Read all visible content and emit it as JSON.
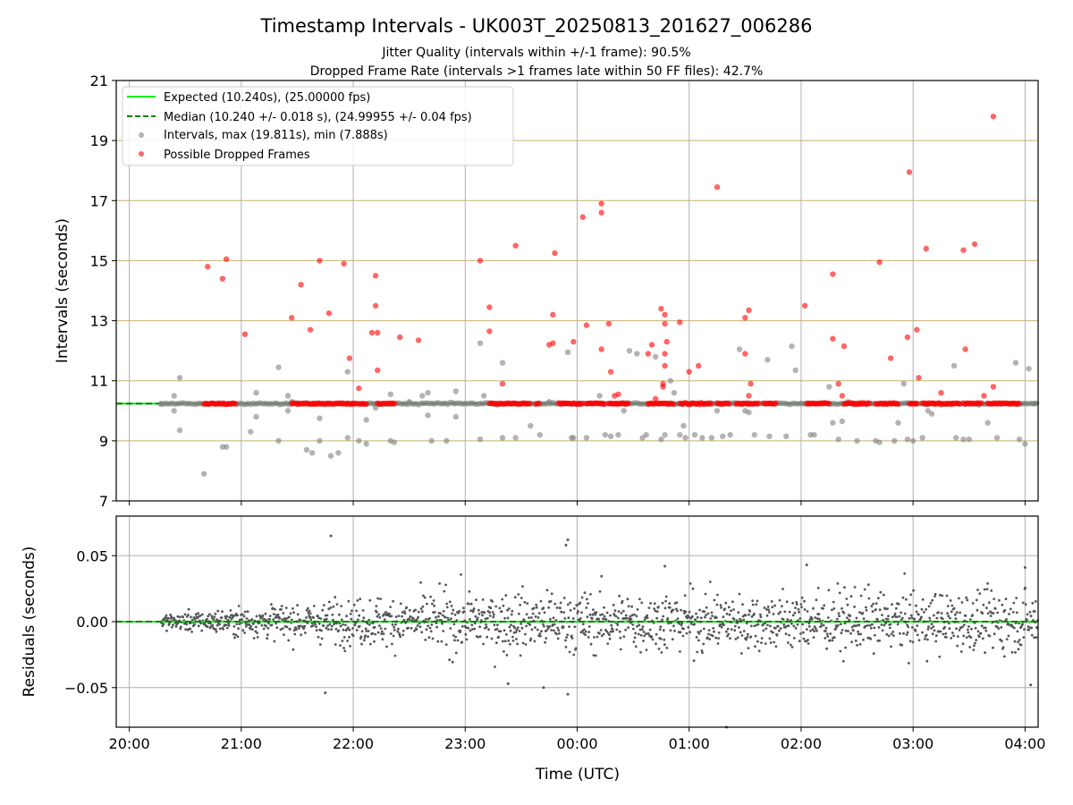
{
  "title": "Timestamp Intervals - UK003T_20250813_201627_006286",
  "subtitle_1": "Jitter Quality (intervals within +/-1 frame): 90.5%",
  "subtitle_2": "Dropped Frame Rate (intervals >1 frames late within 50 FF files): 42.7%",
  "colors": {
    "expected": "#00ee00",
    "median": "#007f00",
    "intervals": "#808080",
    "dropped": "#ff0000",
    "hgrid": "#c8b070",
    "vgrid": "#b0b0b0",
    "residuals": "#555555"
  },
  "chart_data": [
    {
      "type": "scatter",
      "ylabel": "Intervals (seconds)",
      "ylim": [
        7,
        21
      ],
      "yticks": [
        "7",
        "9",
        "11",
        "13",
        "15",
        "17",
        "19",
        "21"
      ],
      "x_range_utc": [
        "19:53",
        "04:07"
      ],
      "xticks": [
        "20:00",
        "21:00",
        "22:00",
        "23:00",
        "00:00",
        "01:00",
        "02:00",
        "03:00",
        "04:00"
      ],
      "grid": "horizontal lines at odd seconds, vertical lines at hours",
      "legend_position": "top-left",
      "legend": {
        "expected": "Expected (10.240s), (25.00000 fps)",
        "median": "Median (10.240 +/- 0.018 s), (24.99955 +/- 0.04 fps)",
        "intervals": "Intervals, max (19.811s), min (7.888s)",
        "dropped": "Possible Dropped Frames"
      },
      "expected_interval": 10.24,
      "median_interval": 10.24,
      "series": [
        {
          "name": "Intervals, max (19.811s), min (7.888s)",
          "points": [
            [
              "20:17",
              10.24
            ],
            [
              "20:24",
              10.5
            ],
            [
              "20:24",
              10.0
            ],
            [
              "20:27",
              11.1
            ],
            [
              "20:27",
              9.35
            ],
            [
              "20:40",
              7.9
            ],
            [
              "20:50",
              8.8
            ],
            [
              "20:52",
              8.8
            ],
            [
              "21:05",
              9.3
            ],
            [
              "21:08",
              9.8
            ],
            [
              "21:08",
              10.6
            ],
            [
              "21:20",
              11.45
            ],
            [
              "21:20",
              9.0
            ],
            [
              "21:25",
              10.0
            ],
            [
              "21:25",
              10.5
            ],
            [
              "21:27",
              10.3
            ],
            [
              "21:35",
              8.7
            ],
            [
              "21:38",
              8.6
            ],
            [
              "21:42",
              9.0
            ],
            [
              "21:42",
              9.75
            ],
            [
              "21:48",
              8.5
            ],
            [
              "21:52",
              8.6
            ],
            [
              "21:57",
              9.1
            ],
            [
              "21:57",
              11.3
            ],
            [
              "22:03",
              9.0
            ],
            [
              "22:07",
              8.9
            ],
            [
              "22:07",
              9.7
            ],
            [
              "22:12",
              10.1
            ],
            [
              "22:20",
              9.0
            ],
            [
              "22:20",
              10.55
            ],
            [
              "22:22",
              8.95
            ],
            [
              "22:30",
              10.3
            ],
            [
              "22:37",
              10.5
            ],
            [
              "22:40",
              9.85
            ],
            [
              "22:40",
              10.6
            ],
            [
              "22:42",
              9.0
            ],
            [
              "22:50",
              9.0
            ],
            [
              "22:55",
              10.65
            ],
            [
              "22:55",
              9.8
            ],
            [
              "23:08",
              12.25
            ],
            [
              "23:08",
              9.05
            ],
            [
              "23:10",
              10.5
            ],
            [
              "23:20",
              9.1
            ],
            [
              "23:20",
              11.6
            ],
            [
              "23:27",
              9.1
            ],
            [
              "23:35",
              9.5
            ],
            [
              "23:40",
              9.2
            ],
            [
              "23:45",
              10.3
            ],
            [
              "23:55",
              11.95
            ],
            [
              "23:57",
              9.1
            ],
            [
              "23:58",
              9.1
            ],
            [
              "00:05",
              9.1
            ],
            [
              "00:12",
              10.5
            ],
            [
              "00:15",
              9.2
            ],
            [
              "00:18",
              9.15
            ],
            [
              "00:22",
              9.2
            ],
            [
              "00:25",
              10.0
            ],
            [
              "00:28",
              12.0
            ],
            [
              "00:32",
              11.9
            ],
            [
              "00:35",
              9.1
            ],
            [
              "00:37",
              9.2
            ],
            [
              "00:42",
              11.8
            ],
            [
              "00:45",
              9.05
            ],
            [
              "00:47",
              9.2
            ],
            [
              "00:50",
              11.0
            ],
            [
              "00:52",
              10.6
            ],
            [
              "00:55",
              9.2
            ],
            [
              "00:57",
              9.5
            ],
            [
              "00:58",
              9.1
            ],
            [
              "01:03",
              9.2
            ],
            [
              "01:07",
              9.1
            ],
            [
              "01:12",
              9.1
            ],
            [
              "01:15",
              10.0
            ],
            [
              "01:18",
              9.15
            ],
            [
              "01:22",
              9.2
            ],
            [
              "01:27",
              12.05
            ],
            [
              "01:30",
              10.0
            ],
            [
              "01:32",
              9.95
            ],
            [
              "01:35",
              9.2
            ],
            [
              "01:42",
              11.7
            ],
            [
              "01:43",
              9.15
            ],
            [
              "01:52",
              9.15
            ],
            [
              "01:55",
              12.15
            ],
            [
              "01:57",
              11.35
            ],
            [
              "02:05",
              9.2
            ],
            [
              "02:07",
              9.2
            ],
            [
              "02:15",
              10.8
            ],
            [
              "02:17",
              9.6
            ],
            [
              "02:20",
              9.05
            ],
            [
              "02:22",
              9.65
            ],
            [
              "02:25",
              10.3
            ],
            [
              "02:30",
              9.0
            ],
            [
              "02:40",
              9.0
            ],
            [
              "02:42",
              8.95
            ],
            [
              "02:50",
              9.0
            ],
            [
              "02:52",
              9.6
            ],
            [
              "02:55",
              10.9
            ],
            [
              "02:57",
              9.05
            ],
            [
              "03:00",
              9.0
            ],
            [
              "03:05",
              9.1
            ],
            [
              "03:08",
              10.0
            ],
            [
              "03:10",
              9.9
            ],
            [
              "03:15",
              10.2
            ],
            [
              "03:22",
              11.5
            ],
            [
              "03:23",
              9.1
            ],
            [
              "03:27",
              9.05
            ],
            [
              "03:30",
              9.05
            ],
            [
              "03:35",
              10.2
            ],
            [
              "03:40",
              9.6
            ],
            [
              "03:45",
              9.1
            ],
            [
              "03:55",
              11.6
            ],
            [
              "03:57",
              9.05
            ],
            [
              "04:00",
              8.9
            ],
            [
              "04:02",
              11.4
            ],
            [
              "04:05",
              10.24
            ]
          ]
        },
        {
          "name": "Possible Dropped Frames",
          "points": [
            [
              "20:42",
              14.8
            ],
            [
              "20:50",
              14.4
            ],
            [
              "20:52",
              15.05
            ],
            [
              "21:02",
              12.55
            ],
            [
              "21:27",
              13.1
            ],
            [
              "21:32",
              14.2
            ],
            [
              "21:37",
              12.7
            ],
            [
              "21:42",
              15.0
            ],
            [
              "21:47",
              13.25
            ],
            [
              "21:55",
              14.9
            ],
            [
              "21:58",
              11.75
            ],
            [
              "22:03",
              10.75
            ],
            [
              "22:10",
              12.6
            ],
            [
              "22:12",
              14.5
            ],
            [
              "22:12",
              13.5
            ],
            [
              "22:13",
              12.6
            ],
            [
              "22:13",
              11.35
            ],
            [
              "22:25",
              12.45
            ],
            [
              "22:35",
              12.35
            ],
            [
              "23:08",
              15.0
            ],
            [
              "23:13",
              13.45
            ],
            [
              "23:13",
              12.65
            ],
            [
              "23:20",
              10.9
            ],
            [
              "23:27",
              15.5
            ],
            [
              "23:45",
              12.2
            ],
            [
              "23:47",
              12.25
            ],
            [
              "23:48",
              15.25
            ],
            [
              "23:47",
              13.2
            ],
            [
              "23:58",
              12.3
            ],
            [
              "00:03",
              16.45
            ],
            [
              "00:05",
              12.85
            ],
            [
              "00:13",
              16.6
            ],
            [
              "00:13",
              16.9
            ],
            [
              "00:13",
              12.05
            ],
            [
              "00:17",
              12.9
            ],
            [
              "00:18",
              11.3
            ],
            [
              "00:20",
              10.5
            ],
            [
              "00:22",
              10.55
            ],
            [
              "00:38",
              11.9
            ],
            [
              "00:40",
              12.2
            ],
            [
              "00:42",
              10.4
            ],
            [
              "00:45",
              13.4
            ],
            [
              "00:47",
              13.2
            ],
            [
              "00:47",
              12.9
            ],
            [
              "00:48",
              12.3
            ],
            [
              "00:47",
              11.9
            ],
            [
              "00:47",
              11.5
            ],
            [
              "00:46",
              10.8
            ],
            [
              "00:46",
              10.9
            ],
            [
              "00:55",
              12.95
            ],
            [
              "01:00",
              11.3
            ],
            [
              "01:05",
              11.5
            ],
            [
              "01:15",
              17.45
            ],
            [
              "01:30",
              13.1
            ],
            [
              "01:32",
              13.35
            ],
            [
              "01:30",
              11.9
            ],
            [
              "01:32",
              10.5
            ],
            [
              "01:33",
              10.9
            ],
            [
              "02:02",
              13.5
            ],
            [
              "02:17",
              14.55
            ],
            [
              "02:17",
              12.4
            ],
            [
              "02:20",
              10.9
            ],
            [
              "02:22",
              10.5
            ],
            [
              "02:23",
              12.15
            ],
            [
              "02:42",
              14.95
            ],
            [
              "02:48",
              11.75
            ],
            [
              "02:57",
              12.45
            ],
            [
              "02:58",
              17.95
            ],
            [
              "03:02",
              12.7
            ],
            [
              "03:03",
              11.1
            ],
            [
              "03:07",
              15.4
            ],
            [
              "03:15",
              10.6
            ],
            [
              "03:27",
              15.35
            ],
            [
              "03:28",
              12.05
            ],
            [
              "03:33",
              15.55
            ],
            [
              "03:38",
              10.5
            ],
            [
              "03:43",
              10.8
            ],
            [
              "03:43",
              19.8
            ]
          ]
        }
      ]
    },
    {
      "type": "scatter",
      "ylabel": "Residuals (seconds)",
      "xlabel": "Time (UTC)",
      "ylim": [
        -0.08,
        0.08
      ],
      "yticks": [
        "−0.05",
        "0.00",
        "0.05"
      ],
      "xticks": [
        "20:00",
        "21:00",
        "22:00",
        "23:00",
        "00:00",
        "01:00",
        "02:00",
        "03:00",
        "04:00"
      ],
      "grid": "on",
      "outliers": [
        [
          "21:48",
          0.065
        ],
        [
          "23:55",
          0.062
        ],
        [
          "23:54",
          0.058
        ],
        [
          "21:45",
          -0.054
        ],
        [
          "23:23",
          -0.047
        ],
        [
          "23:42",
          -0.05
        ],
        [
          "23:55",
          -0.055
        ],
        [
          "01:20",
          -0.08
        ],
        [
          "04:00",
          0.041
        ],
        [
          "04:03",
          -0.048
        ],
        [
          "02:03",
          0.043
        ],
        [
          "00:47",
          0.042
        ]
      ]
    }
  ]
}
